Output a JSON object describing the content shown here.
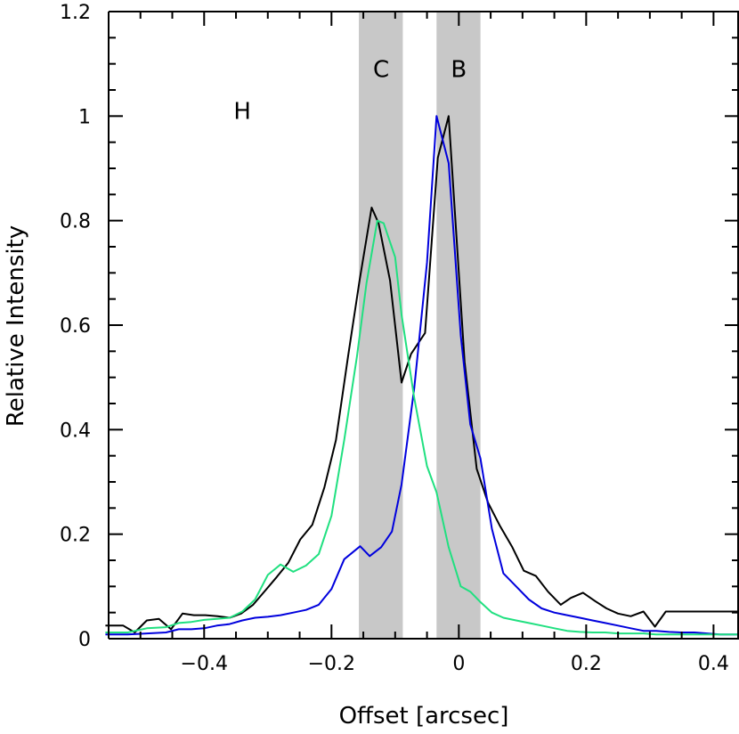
{
  "chart_data": {
    "type": "line",
    "xlabel": "Offset [arcsec]",
    "ylabel": "Relative Intensity",
    "xlim": [
      -0.55,
      0.44
    ],
    "ylim": [
      0,
      1.2
    ],
    "x_ticks": [
      -0.4,
      -0.2,
      0,
      0.2,
      0.4
    ],
    "x_tick_labels": [
      "−0.4",
      "−0.2",
      "0",
      "0.2",
      "0.4"
    ],
    "y_ticks": [
      0,
      0.2,
      0.4,
      0.6,
      0.8,
      1,
      1.2
    ],
    "y_tick_labels": [
      "0",
      "0.2",
      "0.4",
      "0.6",
      "0.8",
      "1",
      "1.2"
    ],
    "grid": false,
    "bands": [
      {
        "x0": -0.157,
        "x1": -0.088,
        "color": "#c8c8c8",
        "label": "C"
      },
      {
        "x0": -0.035,
        "x1": 0.034,
        "color": "#c8c8c8",
        "label": "B"
      }
    ],
    "annotations": [
      {
        "text": "H",
        "x": -0.34,
        "y": 0.995
      },
      {
        "text": "C",
        "x": -0.122,
        "y": 1.075
      },
      {
        "text": "B",
        "x": 0.0,
        "y": 1.075
      }
    ],
    "series": [
      {
        "color": "#000000",
        "x": [
          -0.555,
          -0.527,
          -0.509,
          -0.49,
          -0.471,
          -0.452,
          -0.434,
          -0.416,
          -0.398,
          -0.379,
          -0.36,
          -0.342,
          -0.323,
          -0.304,
          -0.286,
          -0.268,
          -0.249,
          -0.23,
          -0.211,
          -0.193,
          -0.174,
          -0.156,
          -0.137,
          -0.126,
          -0.108,
          -0.09,
          -0.075,
          -0.053,
          -0.033,
          -0.016,
          0.009,
          0.028,
          0.046,
          0.065,
          0.084,
          0.102,
          0.121,
          0.14,
          0.16,
          0.176,
          0.195,
          0.214,
          0.232,
          0.25,
          0.27,
          0.29,
          0.308,
          0.325,
          0.344,
          0.363,
          0.376,
          0.393,
          0.411,
          0.44
        ],
        "y": [
          0.025,
          0.025,
          0.012,
          0.035,
          0.038,
          0.018,
          0.048,
          0.045,
          0.045,
          0.043,
          0.04,
          0.048,
          0.065,
          0.092,
          0.118,
          0.145,
          0.19,
          0.218,
          0.29,
          0.38,
          0.54,
          0.685,
          0.825,
          0.795,
          0.685,
          0.49,
          0.545,
          0.585,
          0.92,
          1.0,
          0.53,
          0.325,
          0.26,
          0.215,
          0.175,
          0.13,
          0.12,
          0.09,
          0.065,
          0.078,
          0.088,
          0.072,
          0.058,
          0.048,
          0.043,
          0.052,
          0.023,
          0.052,
          0.052,
          0.052,
          0.052,
          0.052,
          0.052,
          0.052
        ]
      },
      {
        "color": "#0000dd",
        "x": [
          -0.555,
          -0.52,
          -0.49,
          -0.46,
          -0.44,
          -0.42,
          -0.4,
          -0.38,
          -0.36,
          -0.34,
          -0.32,
          -0.3,
          -0.28,
          -0.26,
          -0.24,
          -0.22,
          -0.2,
          -0.18,
          -0.155,
          -0.14,
          -0.122,
          -0.105,
          -0.09,
          -0.07,
          -0.05,
          -0.035,
          -0.016,
          0.003,
          0.018,
          0.034,
          0.052,
          0.07,
          0.09,
          0.11,
          0.13,
          0.15,
          0.17,
          0.19,
          0.21,
          0.23,
          0.25,
          0.27,
          0.29,
          0.31,
          0.33,
          0.35,
          0.37,
          0.39,
          0.41,
          0.44
        ],
        "y": [
          0.008,
          0.008,
          0.01,
          0.012,
          0.018,
          0.018,
          0.02,
          0.025,
          0.028,
          0.035,
          0.04,
          0.042,
          0.045,
          0.05,
          0.055,
          0.065,
          0.095,
          0.152,
          0.177,
          0.158,
          0.175,
          0.205,
          0.295,
          0.48,
          0.72,
          1.0,
          0.91,
          0.58,
          0.41,
          0.345,
          0.21,
          0.125,
          0.1,
          0.075,
          0.058,
          0.05,
          0.045,
          0.04,
          0.035,
          0.03,
          0.025,
          0.02,
          0.015,
          0.015,
          0.013,
          0.012,
          0.012,
          0.01,
          0.008,
          0.008
        ]
      },
      {
        "color": "#20e080",
        "x": [
          -0.555,
          -0.52,
          -0.49,
          -0.46,
          -0.44,
          -0.42,
          -0.4,
          -0.38,
          -0.36,
          -0.34,
          -0.32,
          -0.3,
          -0.28,
          -0.26,
          -0.24,
          -0.22,
          -0.2,
          -0.18,
          -0.16,
          -0.145,
          -0.128,
          -0.118,
          -0.1,
          -0.09,
          -0.07,
          -0.05,
          -0.035,
          -0.016,
          0.003,
          0.018,
          0.034,
          0.052,
          0.07,
          0.09,
          0.11,
          0.13,
          0.15,
          0.17,
          0.19,
          0.21,
          0.23,
          0.25,
          0.27,
          0.29,
          0.31,
          0.33,
          0.35,
          0.37,
          0.39,
          0.41,
          0.44
        ],
        "y": [
          0.012,
          0.012,
          0.02,
          0.022,
          0.03,
          0.032,
          0.036,
          0.038,
          0.04,
          0.052,
          0.075,
          0.122,
          0.142,
          0.128,
          0.14,
          0.162,
          0.235,
          0.38,
          0.54,
          0.68,
          0.8,
          0.795,
          0.73,
          0.62,
          0.46,
          0.33,
          0.28,
          0.175,
          0.1,
          0.09,
          0.07,
          0.05,
          0.04,
          0.035,
          0.03,
          0.025,
          0.02,
          0.015,
          0.013,
          0.012,
          0.012,
          0.01,
          0.01,
          0.01,
          0.008,
          0.008,
          0.008,
          0.008,
          0.008,
          0.008,
          0.008
        ]
      }
    ]
  }
}
